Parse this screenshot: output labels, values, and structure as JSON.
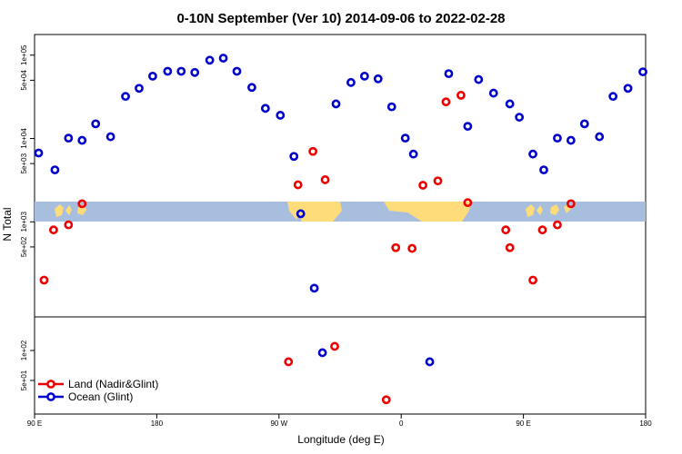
{
  "chart_data": {
    "type": "scatter",
    "title": "0-10N September (Ver 10)   2014-09-06 to 2022-02-28",
    "xlabel": "Longitude (deg E)",
    "ylabel": "N Total",
    "x_ticks": [
      {
        "value": 90,
        "label": "90 E"
      },
      {
        "value": 180,
        "label": "180"
      },
      {
        "value": 270,
        "label": "90 W"
      },
      {
        "value": 360,
        "label": "0"
      },
      {
        "value": 450,
        "label": "90 E"
      },
      {
        "value": 540,
        "label": "180"
      }
    ],
    "xlim": [
      90,
      540
    ],
    "upper_panel": {
      "scale": "log",
      "ylim": [
        80,
        160000
      ],
      "y_ticks": [
        {
          "value": 100000,
          "label": "1e+05"
        },
        {
          "value": 50000,
          "label": "5e+04"
        },
        {
          "value": 10000,
          "label": "1e+04"
        },
        {
          "value": 5000,
          "label": "5e+03"
        },
        {
          "value": 1000,
          "label": "1e+03"
        },
        {
          "value": 500,
          "label": "5e+02"
        }
      ]
    },
    "lower_panel": {
      "scale": "log",
      "ylim": [
        25,
        200
      ],
      "y_ticks": [
        {
          "value": 100,
          "label": "1e+02"
        },
        {
          "value": 50,
          "label": "5e+01"
        }
      ]
    },
    "series": [
      {
        "name": "Land (Nadir&Glint)",
        "color": "#ee0000",
        "points": [
          {
            "x": 97,
            "y": 200,
            "panel": "upper"
          },
          {
            "x": 104,
            "y": 800,
            "panel": "upper"
          },
          {
            "x": 115,
            "y": 920,
            "panel": "upper"
          },
          {
            "x": 125,
            "y": 1650,
            "panel": "upper"
          },
          {
            "x": 277,
            "y": 77,
            "panel": "lower"
          },
          {
            "x": 284,
            "y": 2780,
            "panel": "upper"
          },
          {
            "x": 295,
            "y": 7000,
            "panel": "upper"
          },
          {
            "x": 304,
            "y": 3200,
            "panel": "upper"
          },
          {
            "x": 311,
            "y": 110,
            "panel": "lower"
          },
          {
            "x": 349,
            "y": 32,
            "panel": "lower"
          },
          {
            "x": 356,
            "y": 490,
            "panel": "upper"
          },
          {
            "x": 368,
            "y": 480,
            "panel": "upper"
          },
          {
            "x": 376,
            "y": 2750,
            "panel": "upper"
          },
          {
            "x": 387,
            "y": 3100,
            "panel": "upper"
          },
          {
            "x": 393,
            "y": 27500,
            "panel": "upper"
          },
          {
            "x": 404,
            "y": 33000,
            "panel": "upper"
          },
          {
            "x": 409,
            "y": 1700,
            "panel": "upper"
          },
          {
            "x": 437,
            "y": 800,
            "panel": "upper"
          },
          {
            "x": 440,
            "y": 490,
            "panel": "upper"
          },
          {
            "x": 457,
            "y": 200,
            "panel": "upper"
          },
          {
            "x": 464,
            "y": 800,
            "panel": "upper"
          },
          {
            "x": 475,
            "y": 920,
            "panel": "upper"
          },
          {
            "x": 485,
            "y": 1650,
            "panel": "upper"
          }
        ]
      },
      {
        "name": "Ocean (Glint)",
        "color": "#0000cc",
        "points": [
          {
            "x": 93,
            "y": 6700,
            "panel": "upper"
          },
          {
            "x": 105,
            "y": 4200,
            "panel": "upper"
          },
          {
            "x": 115,
            "y": 10100,
            "panel": "upper"
          },
          {
            "x": 125,
            "y": 9500,
            "panel": "upper"
          },
          {
            "x": 135,
            "y": 15000,
            "panel": "upper"
          },
          {
            "x": 146,
            "y": 10500,
            "panel": "upper"
          },
          {
            "x": 157,
            "y": 32000,
            "panel": "upper"
          },
          {
            "x": 167,
            "y": 40000,
            "panel": "upper"
          },
          {
            "x": 177,
            "y": 56000,
            "panel": "upper"
          },
          {
            "x": 188,
            "y": 64000,
            "panel": "upper"
          },
          {
            "x": 198,
            "y": 64000,
            "panel": "upper"
          },
          {
            "x": 208,
            "y": 62000,
            "panel": "upper"
          },
          {
            "x": 219,
            "y": 87000,
            "panel": "upper"
          },
          {
            "x": 229,
            "y": 92000,
            "panel": "upper"
          },
          {
            "x": 239,
            "y": 64000,
            "panel": "upper"
          },
          {
            "x": 250,
            "y": 41000,
            "panel": "upper"
          },
          {
            "x": 260,
            "y": 23000,
            "panel": "upper"
          },
          {
            "x": 271,
            "y": 19000,
            "panel": "upper"
          },
          {
            "x": 281,
            "y": 6100,
            "panel": "upper"
          },
          {
            "x": 286,
            "y": 1250,
            "panel": "upper"
          },
          {
            "x": 296,
            "y": 160,
            "panel": "upper"
          },
          {
            "x": 302,
            "y": 95,
            "panel": "lower"
          },
          {
            "x": 312,
            "y": 26000,
            "panel": "upper"
          },
          {
            "x": 323,
            "y": 47000,
            "panel": "upper"
          },
          {
            "x": 333,
            "y": 56000,
            "panel": "upper"
          },
          {
            "x": 343,
            "y": 52000,
            "panel": "upper"
          },
          {
            "x": 353,
            "y": 24000,
            "panel": "upper"
          },
          {
            "x": 363,
            "y": 10100,
            "panel": "upper"
          },
          {
            "x": 369,
            "y": 6500,
            "panel": "upper"
          },
          {
            "x": 381,
            "y": 77,
            "panel": "lower"
          },
          {
            "x": 395,
            "y": 60000,
            "panel": "upper"
          },
          {
            "x": 409,
            "y": 14000,
            "panel": "upper"
          },
          {
            "x": 417,
            "y": 51000,
            "panel": "upper"
          },
          {
            "x": 428,
            "y": 35000,
            "panel": "upper"
          },
          {
            "x": 440,
            "y": 26000,
            "panel": "upper"
          },
          {
            "x": 447,
            "y": 18000,
            "panel": "upper"
          },
          {
            "x": 457,
            "y": 6500,
            "panel": "upper"
          },
          {
            "x": 465,
            "y": 4200,
            "panel": "upper"
          },
          {
            "x": 475,
            "y": 10100,
            "panel": "upper"
          },
          {
            "x": 485,
            "y": 9500,
            "panel": "upper"
          },
          {
            "x": 495,
            "y": 15000,
            "panel": "upper"
          },
          {
            "x": 506,
            "y": 10500,
            "panel": "upper"
          },
          {
            "x": 516,
            "y": 32000,
            "panel": "upper"
          },
          {
            "x": 527,
            "y": 40000,
            "panel": "upper"
          },
          {
            "x": 538,
            "y": 63000,
            "panel": "upper"
          }
        ]
      }
    ],
    "legend": {
      "placement": "bottom-left"
    },
    "map_band": {
      "ocean_color": "#a8bedf",
      "land_color": "#fedc7a"
    },
    "grid": false
  }
}
